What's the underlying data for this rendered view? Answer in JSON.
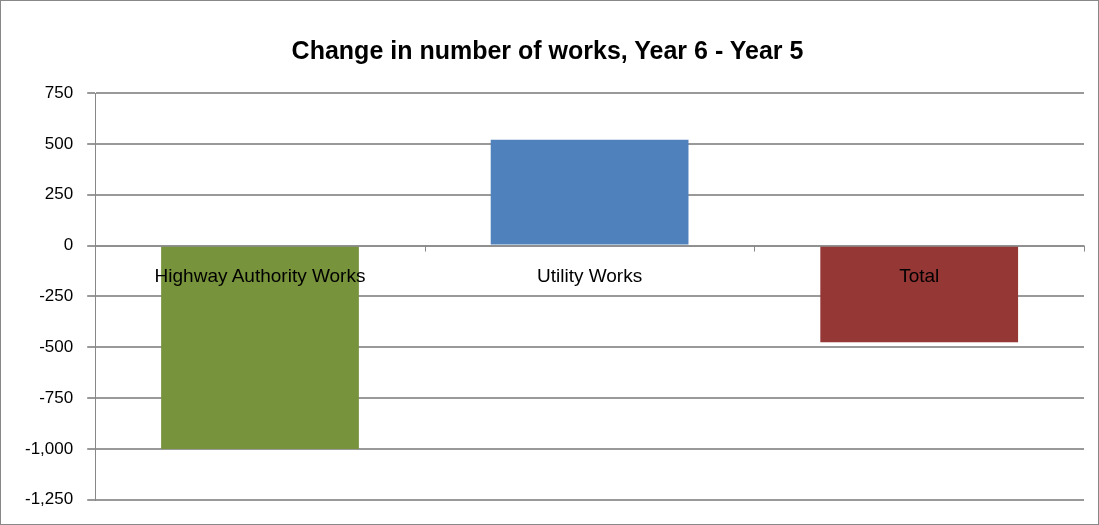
{
  "chart_data": {
    "type": "bar",
    "title": "Change in number of works, Year 6 - Year 5",
    "categories": [
      "Highway Authority Works",
      "Utility Works",
      "Total"
    ],
    "values": [
      -1000,
      520,
      -475
    ],
    "colors": [
      "#77933c",
      "#4f81bd",
      "#953735"
    ],
    "ylim": [
      -1250,
      750
    ],
    "yticks": [
      750,
      500,
      250,
      0,
      {
        "value": -250,
        "label": "-250"
      },
      {
        "value": -500,
        "label": "-500"
      },
      {
        "value": -750,
        "label": "-750"
      },
      {
        "value": -1000,
        "label": "-1,000"
      },
      {
        "value": -1250,
        "label": "-1,250"
      }
    ],
    "grid": "y",
    "legend": false
  }
}
